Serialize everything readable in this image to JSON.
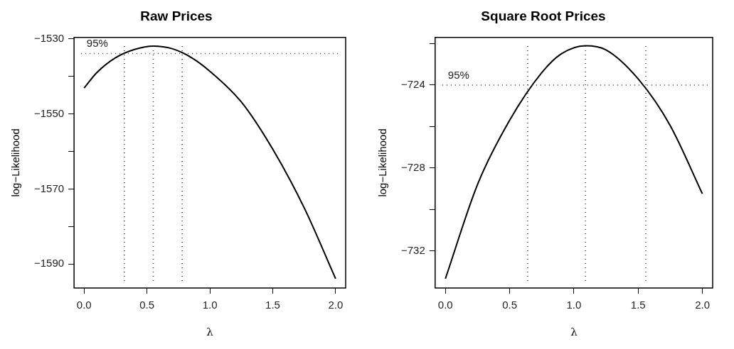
{
  "chart_data": [
    {
      "type": "line",
      "title": "Raw Prices",
      "xlabel": "λ",
      "ylabel": "log−Likelihood",
      "x": [
        0,
        0.1,
        0.25,
        0.4,
        0.55,
        0.7,
        0.85,
        1.0,
        1.25,
        1.5,
        1.75,
        2.0
      ],
      "series": [
        {
          "color": "#000000",
          "values": [
            -1543.1,
            -1539.0,
            -1535.0,
            -1532.8,
            -1531.9,
            -1532.6,
            -1534.9,
            -1538.6,
            -1546.8,
            -1559.4,
            -1575.0,
            -1593.9
          ]
        }
      ],
      "xlim": [
        -0.08,
        2.08
      ],
      "ylim": [
        -1596.4,
        -1529.6
      ],
      "xticks": [
        {
          "value": 0,
          "label": "0.0"
        },
        {
          "value": 0.5,
          "label": "0.5"
        },
        {
          "value": 1,
          "label": "1.0"
        },
        {
          "value": 1.5,
          "label": "1.5"
        },
        {
          "value": 2,
          "label": "2.0"
        }
      ],
      "yticks": [
        {
          "value": -1530,
          "label": "−1530"
        },
        {
          "value": -1540,
          "label": null
        },
        {
          "value": -1550,
          "label": "−1550"
        },
        {
          "value": -1560,
          "label": null
        },
        {
          "value": -1570,
          "label": "−1570"
        },
        {
          "value": -1580,
          "label": null
        },
        {
          "value": -1590,
          "label": "−1590"
        }
      ],
      "annotations": [
        {
          "text": "95%",
          "x": 0.02,
          "y": -1533.9
        }
      ],
      "ref_lines": [
        {
          "axis": "y",
          "value": -1533.9,
          "line_style": "dotted"
        },
        {
          "axis": "x",
          "value": 0.32,
          "line_style": "dotted"
        },
        {
          "axis": "x",
          "value": 0.55,
          "line_style": "dotted"
        },
        {
          "axis": "x",
          "value": 0.78,
          "line_style": "dotted"
        }
      ],
      "grid": false,
      "legend": false,
      "marker": "none",
      "line_style": "solid"
    },
    {
      "type": "line",
      "title": "Square Root Prices",
      "xlabel": "λ",
      "ylabel": "log−Likelihood",
      "x": [
        0,
        0.25,
        0.5,
        0.75,
        0.9,
        1.09,
        1.25,
        1.5,
        1.75,
        2.0
      ],
      "series": [
        {
          "color": "#000000",
          "values": [
            -733.35,
            -728.8,
            -725.7,
            -723.4,
            -722.5,
            -722.1,
            -722.3,
            -723.7,
            -725.96,
            -729.25
          ]
        }
      ],
      "xlim": [
        -0.08,
        2.08
      ],
      "ylim": [
        -733.8,
        -721.7
      ],
      "xticks": [
        {
          "value": 0,
          "label": "0.0"
        },
        {
          "value": 0.5,
          "label": "0.5"
        },
        {
          "value": 1,
          "label": "1.0"
        },
        {
          "value": 1.5,
          "label": "1.5"
        },
        {
          "value": 2,
          "label": "2.0"
        }
      ],
      "yticks": [
        {
          "value": -722,
          "label": null
        },
        {
          "value": -724,
          "label": "−724"
        },
        {
          "value": -726,
          "label": null
        },
        {
          "value": -728,
          "label": "−728"
        },
        {
          "value": -730,
          "label": null
        },
        {
          "value": -732,
          "label": "−732"
        }
      ],
      "annotations": [
        {
          "text": "95%",
          "x": 0.02,
          "y": -724
        }
      ],
      "ref_lines": [
        {
          "axis": "y",
          "value": -724,
          "line_style": "dotted"
        },
        {
          "axis": "x",
          "value": 0.64,
          "line_style": "dotted"
        },
        {
          "axis": "x",
          "value": 1.09,
          "line_style": "dotted"
        },
        {
          "axis": "x",
          "value": 1.56,
          "line_style": "dotted"
        }
      ],
      "grid": false,
      "legend": false,
      "marker": "none",
      "line_style": "solid"
    }
  ]
}
